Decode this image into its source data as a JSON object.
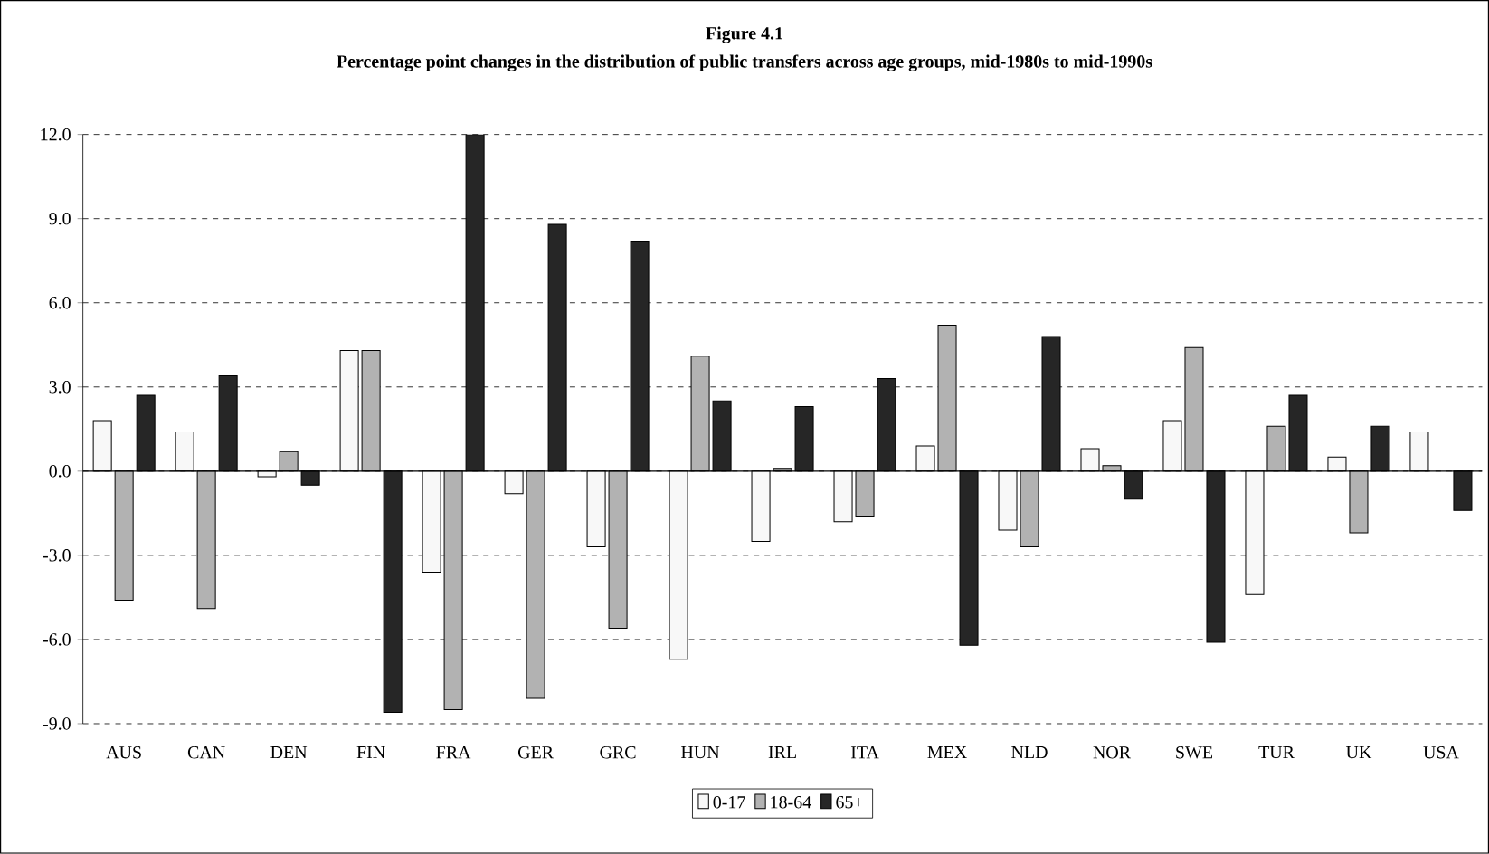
{
  "chart_data": {
    "type": "bar",
    "title": "Figure 4.1",
    "subtitle": "Percentage point changes in the distribution of public transfers across age groups, mid-1980s to mid-1990s",
    "categories": [
      "AUS",
      "CAN",
      "DEN",
      "FIN",
      "FRA",
      "GER",
      "GRC",
      "HUN",
      "IRL",
      "ITA",
      "MEX",
      "NLD",
      "NOR",
      "SWE",
      "TUR",
      "UK",
      "USA"
    ],
    "series": [
      {
        "name": "0-17",
        "color": "#f8f8f8",
        "values": [
          1.8,
          1.4,
          -0.2,
          4.3,
          -3.6,
          -0.8,
          -2.7,
          -6.7,
          -2.5,
          -1.8,
          0.9,
          -2.1,
          0.8,
          1.8,
          -4.4,
          0.5,
          1.4
        ]
      },
      {
        "name": "18-64",
        "color": "#b2b2b2",
        "values": [
          -4.6,
          -4.9,
          0.7,
          4.3,
          -8.5,
          -8.1,
          -5.6,
          4.1,
          0.1,
          -1.6,
          5.2,
          -2.7,
          0.2,
          4.4,
          1.6,
          -2.2,
          null
        ]
      },
      {
        "name": "65+",
        "color": "#262626",
        "values": [
          2.7,
          3.4,
          -0.5,
          -8.6,
          12.0,
          8.8,
          8.2,
          2.5,
          2.3,
          3.3,
          -6.2,
          4.8,
          -1.0,
          -6.1,
          2.7,
          1.6,
          -1.4
        ]
      }
    ],
    "ylim": [
      -9,
      12
    ],
    "yticks": [
      {
        "value": -9,
        "label": "-9.0"
      },
      {
        "value": -6,
        "label": "-6.0"
      },
      {
        "value": -3,
        "label": "-3.0"
      },
      {
        "value": 0,
        "label": "0.0"
      },
      {
        "value": 3,
        "label": "3.0"
      },
      {
        "value": 6,
        "label": "6.0"
      },
      {
        "value": 9,
        "label": "9.0"
      },
      {
        "value": 12,
        "label": "12.0"
      }
    ],
    "grid": "y",
    "legend": "bottom"
  }
}
